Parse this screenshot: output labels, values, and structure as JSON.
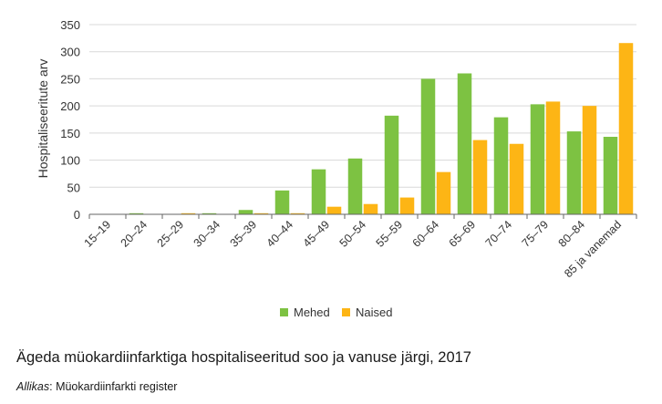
{
  "chart_data": {
    "type": "bar",
    "title": "",
    "xlabel": "",
    "ylabel": "Hospitaliseeritute arv",
    "ylim": [
      0,
      350
    ],
    "yticks": [
      0,
      50,
      100,
      150,
      200,
      250,
      300,
      350
    ],
    "categories": [
      "15–19",
      "20–24",
      "25–29",
      "30–34",
      "35–39",
      "40–44",
      "45–49",
      "50–54",
      "55–59",
      "60–64",
      "65–69",
      "70–74",
      "75–79",
      "80–84",
      "85 ja vanemad"
    ],
    "series": [
      {
        "name": "Mehed",
        "color": "#7dc242",
        "values": [
          0,
          2,
          0,
          2,
          8,
          44,
          83,
          103,
          182,
          250,
          260,
          179,
          203,
          153,
          143
        ]
      },
      {
        "name": "Naised",
        "color": "#fdb515",
        "values": [
          0,
          0,
          2,
          0,
          2,
          2,
          14,
          19,
          31,
          78,
          137,
          130,
          208,
          200,
          316
        ]
      }
    ],
    "legend_position": "bottom"
  },
  "caption": "Ägeda müokardiinfarktiga hospitaliseeritud soo ja vanuse järgi, 2017",
  "source": {
    "label": "Allikas",
    "text": ": Müokardiinfarkti register"
  }
}
